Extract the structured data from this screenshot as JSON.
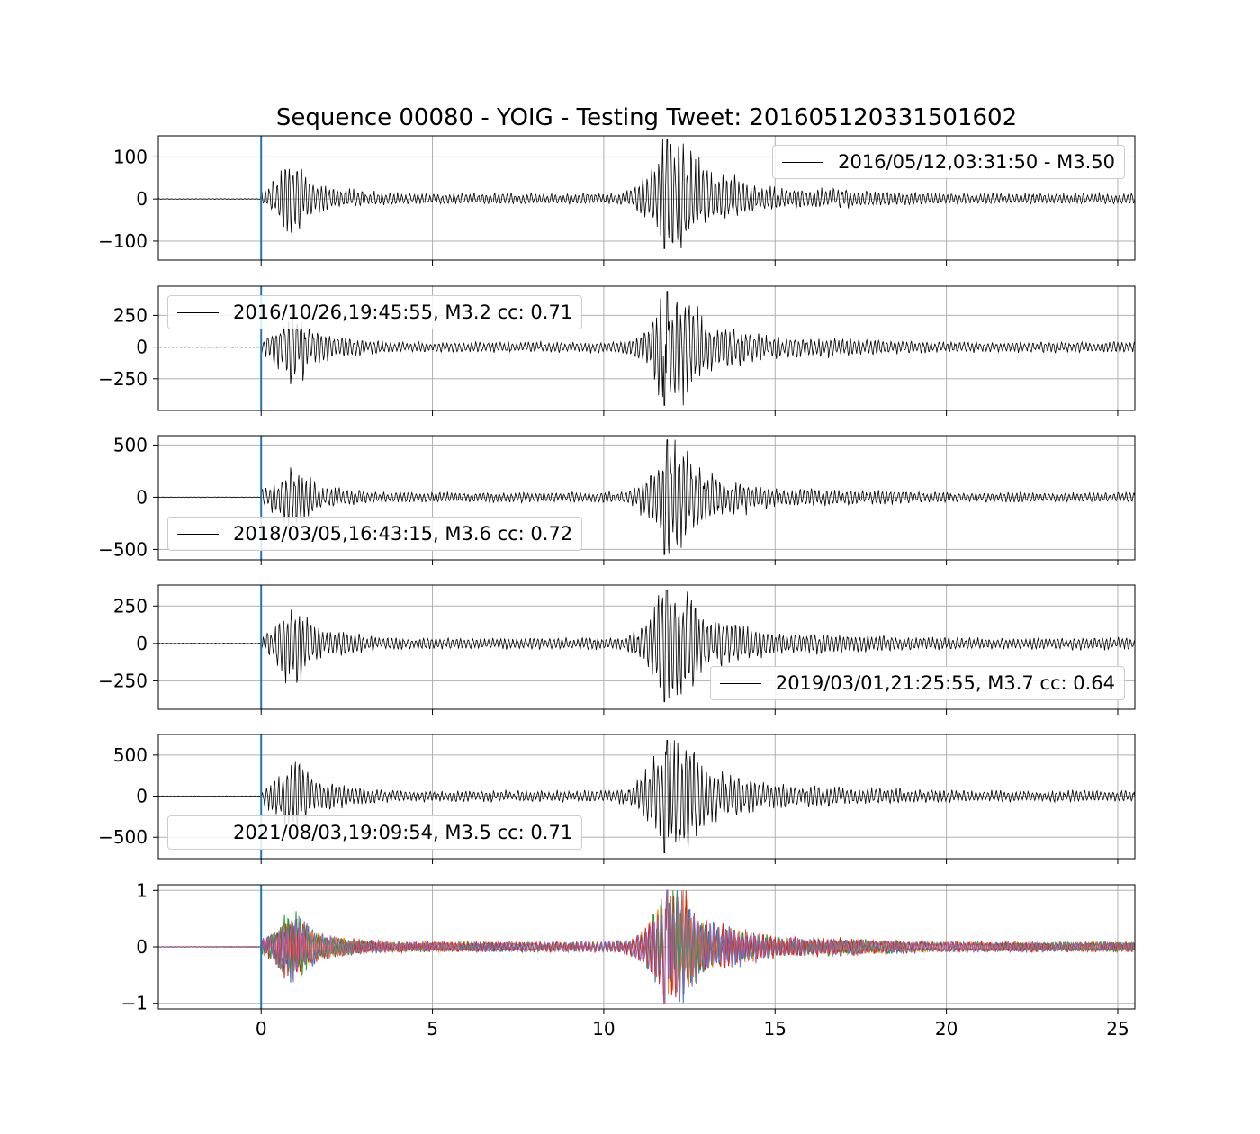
{
  "chart_data": {
    "type": "line",
    "title": "Sequence 00080 - YOIG - Testing Tweet: 201605120331501602",
    "xlim": [
      -3,
      25.5
    ],
    "xticks": [
      "0",
      "5",
      "10",
      "15",
      "20",
      "25"
    ],
    "grid": true,
    "onset_marker": {
      "x": 0,
      "color": "#1f77b4"
    },
    "panels": [
      {
        "name": "2016/05/12,03:31:50 - M3.50",
        "legend_position": "upper right",
        "ylim": [
          -145,
          150
        ],
        "yticks": [
          100,
          0,
          -100
        ],
        "ytick_labels": [
          "100",
          "0",
          "−100"
        ],
        "peak_amplitude": {
          "max": 142,
          "min": -118
        },
        "line_color": "#000000"
      },
      {
        "name": "2016/10/26,19:45:55, M3.2 cc: 0.71",
        "legend_position": "upper left",
        "ylim": [
          -500,
          480
        ],
        "yticks": [
          250,
          0,
          -250
        ],
        "ytick_labels": [
          "250",
          "0",
          "−250"
        ],
        "peak_amplitude": {
          "max": 440,
          "min": -460
        },
        "line_color": "#000000"
      },
      {
        "name": "2018/03/05,16:43:15, M3.6 cc: 0.72",
        "legend_position": "lower left",
        "ylim": [
          -600,
          590
        ],
        "yticks": [
          500,
          0,
          -500
        ],
        "ytick_labels": [
          "500",
          "0",
          "−500"
        ],
        "peak_amplitude": {
          "max": 550,
          "min": -550
        },
        "line_color": "#000000"
      },
      {
        "name": "2019/03/01,21:25:55, M3.7 cc: 0.64",
        "legend_position": "lower right",
        "ylim": [
          -440,
          390
        ],
        "yticks": [
          250,
          0,
          -250
        ],
        "ytick_labels": [
          "250",
          "0",
          "−250"
        ],
        "peak_amplitude": {
          "max": 355,
          "min": -390
        },
        "line_color": "#000000"
      },
      {
        "name": "2021/08/03,19:09:54, M3.5 cc: 0.71",
        "legend_position": "lower left",
        "ylim": [
          -760,
          750
        ],
        "yticks": [
          500,
          0,
          -500
        ],
        "ytick_labels": [
          "500",
          "0",
          "−500"
        ],
        "peak_amplitude": {
          "max": 680,
          "min": -690
        },
        "line_color": "#000000"
      },
      {
        "name": "",
        "legend_position": "",
        "ylim": [
          -1.1,
          1.1
        ],
        "yticks": [
          1,
          0,
          -1
        ],
        "ytick_labels": [
          "1",
          "0",
          "−1"
        ],
        "overlay_normalized": true,
        "overlay_colors": [
          "#1f77b4",
          "#ff7f0e",
          "#2ca02c",
          "#d62728",
          "#9467bd"
        ]
      }
    ]
  }
}
